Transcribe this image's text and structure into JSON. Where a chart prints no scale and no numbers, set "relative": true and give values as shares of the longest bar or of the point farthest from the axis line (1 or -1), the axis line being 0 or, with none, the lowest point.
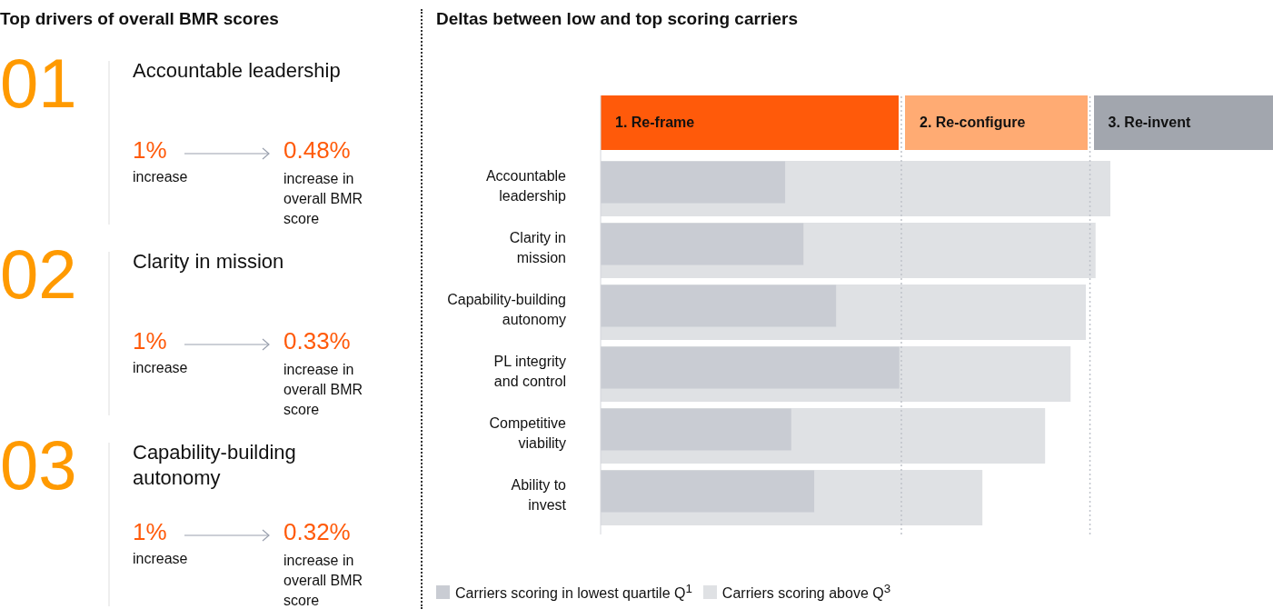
{
  "chart_data": [
    {
      "type": "other",
      "title": "Top drivers of overall BMR scores",
      "annotations": [
        "01",
        "Accountable leadership",
        "1%",
        "increase",
        "0.48%",
        "increase in overall BMR score",
        "02",
        "Clarity in mission",
        "1%",
        "increase",
        "0.33%",
        "increase in overall BMR score",
        "03",
        "Capability-building autonomy",
        "1%",
        "increase",
        "0.32%",
        "increase in overall BMR score"
      ]
    },
    {
      "type": "bar",
      "orientation": "horizontal",
      "relative": true,
      "title": "Deltas between low and top scoring carriers",
      "categories": [
        "Accountable leadership",
        "Clarity in mission",
        "Capability-building autonomy",
        "PL integrity and control",
        "Competitive viability",
        "Ability to invest"
      ],
      "series": [
        {
          "name": "Carriers scoring in lowest quartile Q$^{1}$",
          "color": "#c9ccd3",
          "values": [
            0.362,
            0.398,
            0.462,
            0.586,
            0.374,
            0.419
          ]
        },
        {
          "name": "Carriers scoring above Q$^{3}$",
          "color": "#dfe1e4",
          "values": [
            1,
            0.971,
            0.952,
            0.922,
            0.872,
            0.749
          ]
        }
      ],
      "ref_lines": [
        {
          "axis": "x",
          "value": 0.59,
          "color": "#bfc3ca",
          "line_style": "dotted"
        },
        {
          "axis": "x",
          "value": 0.96,
          "color": "#bfc3ca",
          "line_style": "dotted"
        }
      ],
      "annotations": [
        "1. Re-frame",
        "2. Re-configure",
        "3. Re-invent"
      ],
      "legend": "bottom left"
    }
  ]
}
